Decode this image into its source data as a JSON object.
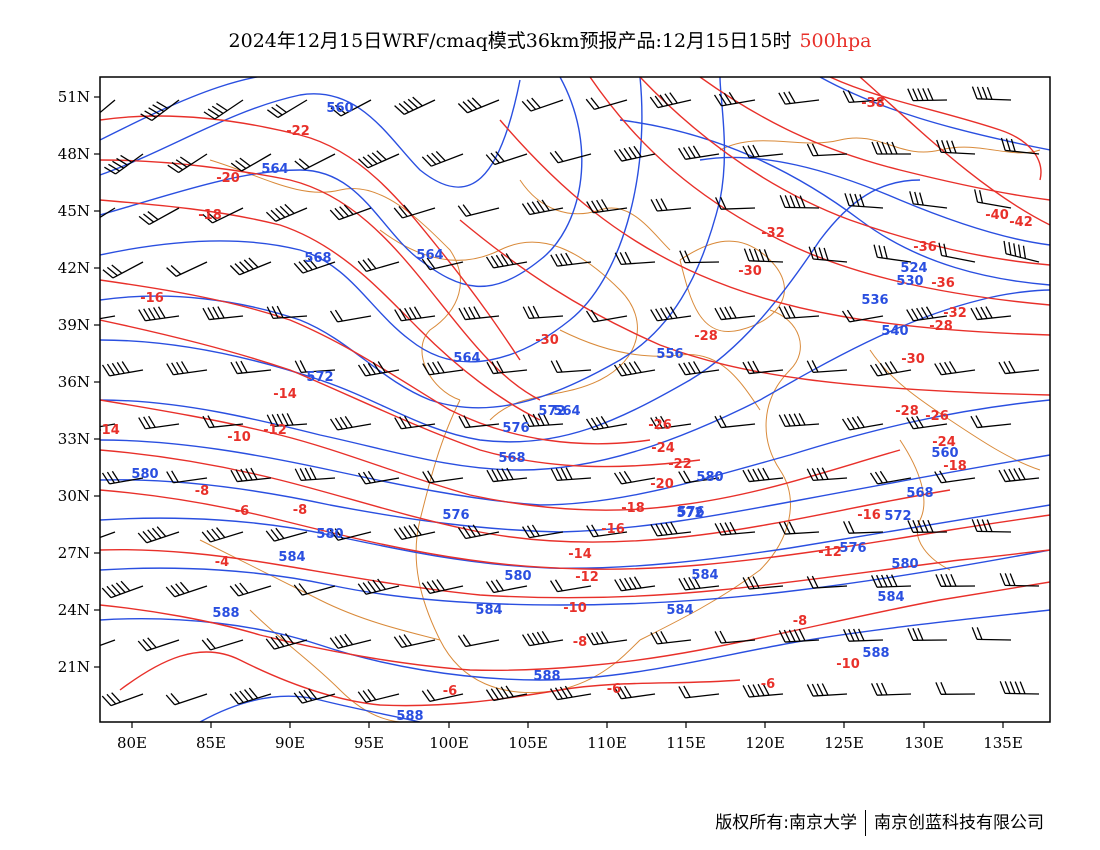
{
  "title": {
    "text": "2024年12月15日WRF/cmaq模式36km预报产品:12月15日15时",
    "level": "500hpa"
  },
  "footer": {
    "left": "版权所有:南京大学",
    "right": "南京创蓝科技有限公司"
  },
  "colors": {
    "height_contour": "#2a4fe0",
    "temperature_contour": "#e8302a",
    "boundary": "#d98a3a",
    "wind_barb": "#000000"
  },
  "axes": {
    "lon_ticks": [
      "80E",
      "85E",
      "90E",
      "95E",
      "100E",
      "105E",
      "110E",
      "115E",
      "120E",
      "125E",
      "130E",
      "135E"
    ],
    "lat_ticks": [
      "51N",
      "48N",
      "45N",
      "42N",
      "39N",
      "36N",
      "33N",
      "30N",
      "27N",
      "24N",
      "21N"
    ]
  },
  "height_labels": [
    "560",
    "564",
    "568",
    "564",
    "564",
    "572",
    "576",
    "568",
    "572",
    "564",
    "556",
    "576",
    "572",
    "580",
    "584",
    "588",
    "580",
    "584",
    "576",
    "580",
    "584",
    "588",
    "588",
    "540",
    "536",
    "524",
    "530",
    "568",
    "560",
    "580",
    "572",
    "576",
    "584",
    "588",
    "584",
    "580"
  ],
  "temperature_labels": [
    "-22",
    "-20",
    "-18",
    "-16",
    "-14",
    "-14",
    "-12",
    "-10",
    "-8",
    "-6",
    "-8",
    "-4",
    "-28",
    "-26",
    "-24",
    "-22",
    "-20",
    "-18",
    "-16",
    "-14",
    "-12",
    "-10",
    "-8",
    "-6",
    "-6",
    "-6",
    "-8",
    "-38",
    "-32",
    "-30",
    "-28",
    "-36",
    "-36",
    "-32",
    "-30",
    "-28",
    "-26",
    "-24",
    "-18",
    "-16",
    "-12",
    "-10",
    "-40",
    "-42",
    "-30"
  ]
}
